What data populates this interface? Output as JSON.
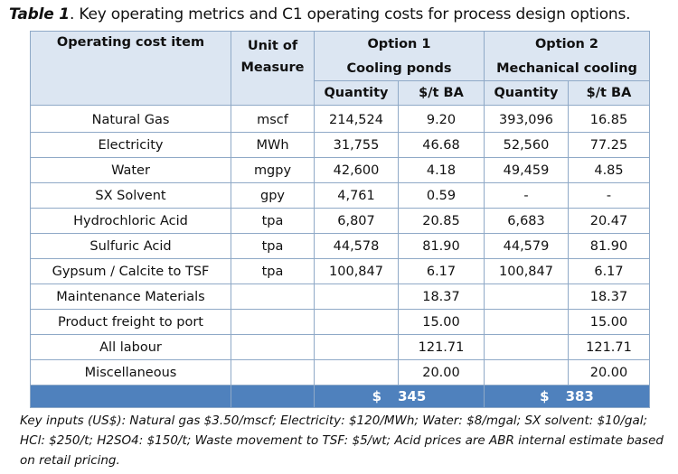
{
  "caption": {
    "lead": "Table 1",
    "text": ". Key operating metrics and C1 operating costs for process design options."
  },
  "header": {
    "item": "Operating cost item",
    "unit_line1": "Unit of",
    "unit_line2": "Measure",
    "option1_title": "Option 1",
    "option1_sub": "Cooling ponds",
    "option2_title": "Option 2",
    "option2_sub": "Mechanical cooling",
    "quantity": "Quantity",
    "per_t_ba": "$/t BA"
  },
  "rows": [
    {
      "item": "Natural Gas",
      "unit": "mscf",
      "q1": "214,524",
      "c1": "9.20",
      "q2": "393,096",
      "c2": "16.85"
    },
    {
      "item": "Electricity",
      "unit": "MWh",
      "q1": "31,755",
      "c1": "46.68",
      "q2": "52,560",
      "c2": "77.25"
    },
    {
      "item": "Water",
      "unit": "mgpy",
      "q1": "42,600",
      "c1": "4.18",
      "q2": "49,459",
      "c2": "4.85"
    },
    {
      "item": "SX Solvent",
      "unit": "gpy",
      "q1": "4,761",
      "c1": "0.59",
      "q2": "-",
      "c2": "-"
    },
    {
      "item": "Hydrochloric Acid",
      "unit": "tpa",
      "q1": "6,807",
      "c1": "20.85",
      "q2": "6,683",
      "c2": "20.47"
    },
    {
      "item": "Sulfuric Acid",
      "unit": "tpa",
      "q1": "44,578",
      "c1": "81.90",
      "q2": "44,579",
      "c2": "81.90"
    },
    {
      "item": "Gypsum / Calcite to TSF",
      "unit": "tpa",
      "q1": "100,847",
      "c1": "6.17",
      "q2": "100,847",
      "c2": "6.17"
    },
    {
      "item": "Maintenance Materials",
      "unit": "",
      "q1": "",
      "c1": "18.37",
      "q2": "",
      "c2": "18.37"
    },
    {
      "item": "Product freight to port",
      "unit": "",
      "q1": "",
      "c1": "15.00",
      "q2": "",
      "c2": "15.00"
    },
    {
      "item": "All labour",
      "unit": "",
      "q1": "",
      "c1": "121.71",
      "q2": "",
      "c2": "121.71"
    },
    {
      "item": "Miscellaneous",
      "unit": "",
      "q1": "",
      "c1": "20.00",
      "q2": "",
      "c2": "20.00"
    }
  ],
  "totals": {
    "currency": "$",
    "option1": "345",
    "option2": "383"
  },
  "footnote": "Key inputs (US$): Natural gas $3.50/mscf; Electricity: $120/MWh; Water: $8/mgal; SX solvent: $10/gal; HCl: $250/t; H2SO4: $150/t; Waste movement to TSF: $5/wt; Acid prices are ABR internal estimate based on retail pricing.",
  "colors": {
    "header_bg": "#dce6f2",
    "total_bg": "#4f81bd",
    "border": "#8fa9c7"
  }
}
